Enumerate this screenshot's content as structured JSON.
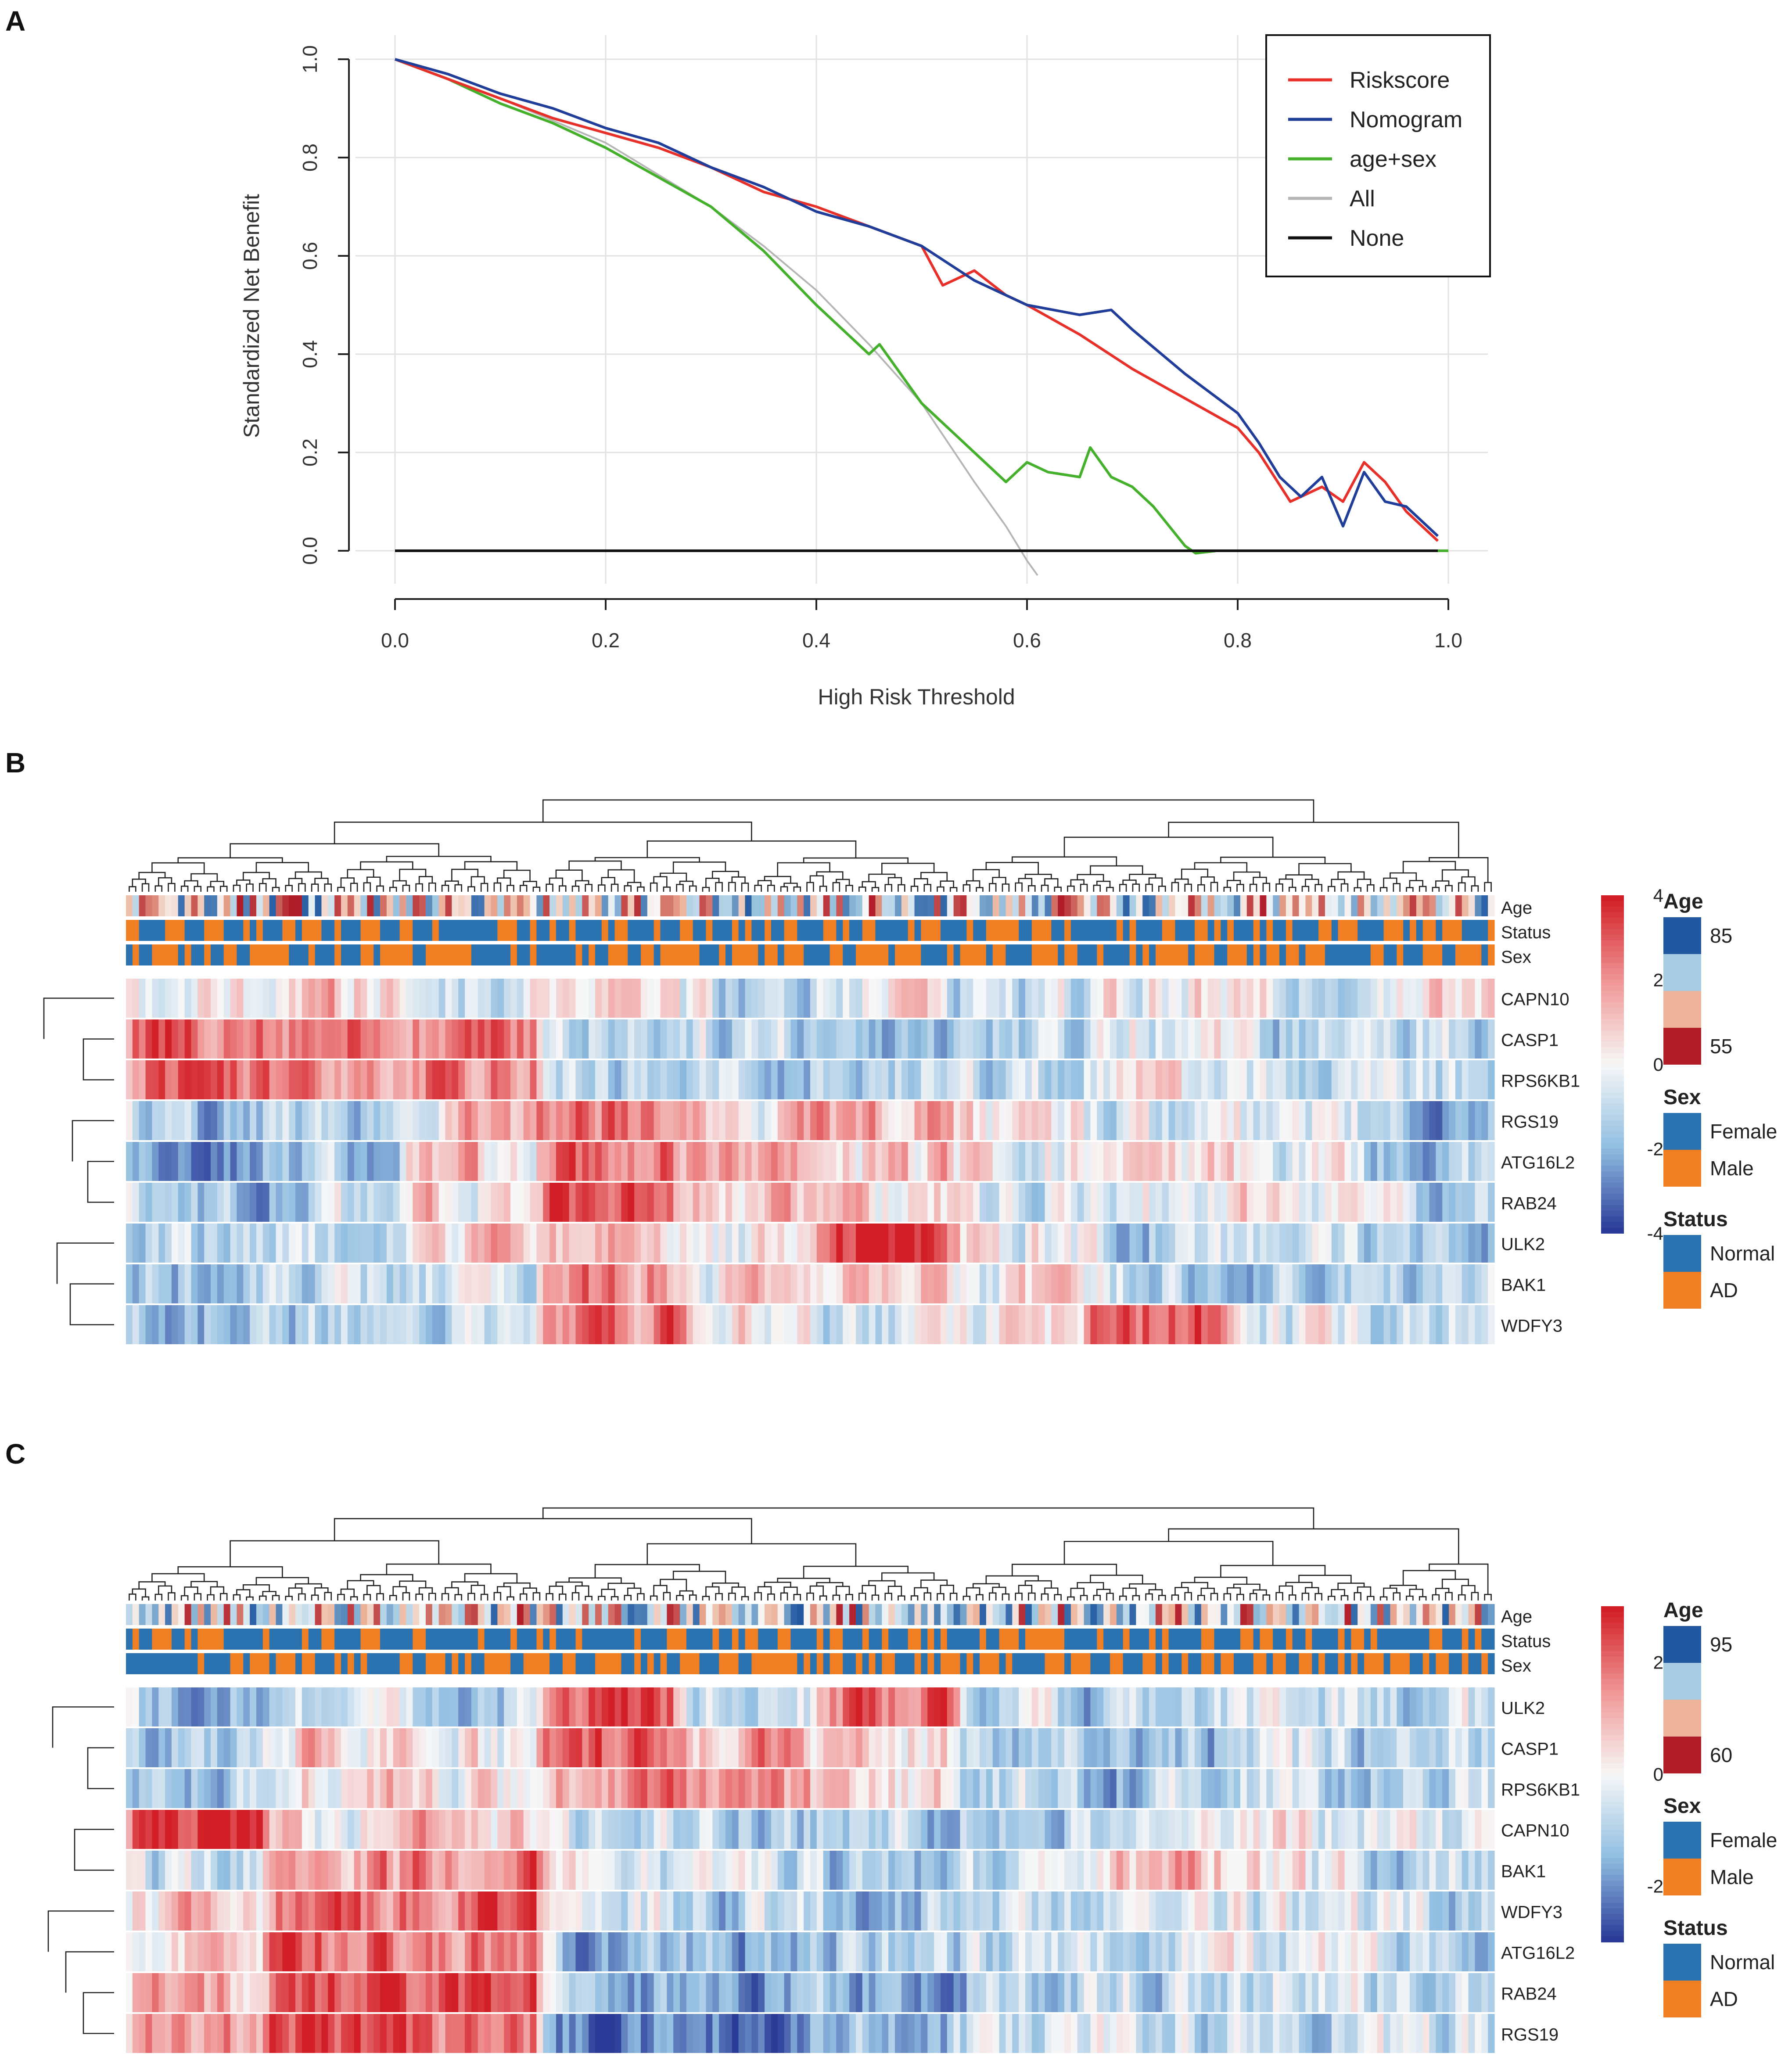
{
  "chart_data": [
    {
      "panel": "A",
      "type": "line",
      "title": "",
      "xlabel": "High Risk Threshold",
      "ylabel": "Standardized Net Benefit",
      "xlim": [
        0,
        1
      ],
      "ylim": [
        -0.05,
        1.05
      ],
      "x_ticks": [
        "0.0",
        "0.2",
        "0.4",
        "0.6",
        "0.8",
        "1.0"
      ],
      "y_ticks": [
        "0.0",
        "0.2",
        "0.4",
        "0.6",
        "0.8",
        "1.0"
      ],
      "grid": true,
      "legend_position": "top-right",
      "series": [
        {
          "name": "Riskscore",
          "color": "#e8302a",
          "x": [
            0,
            0.05,
            0.1,
            0.15,
            0.2,
            0.25,
            0.3,
            0.35,
            0.4,
            0.45,
            0.5,
            0.52,
            0.55,
            0.58,
            0.6,
            0.65,
            0.7,
            0.75,
            0.8,
            0.82,
            0.85,
            0.88,
            0.9,
            0.92,
            0.94,
            0.96,
            0.99
          ],
          "y": [
            1.0,
            0.96,
            0.92,
            0.88,
            0.85,
            0.82,
            0.78,
            0.73,
            0.7,
            0.66,
            0.62,
            0.54,
            0.57,
            0.52,
            0.5,
            0.44,
            0.37,
            0.31,
            0.25,
            0.2,
            0.1,
            0.13,
            0.1,
            0.18,
            0.14,
            0.08,
            0.02
          ]
        },
        {
          "name": "Nomogram",
          "color": "#1f3d99",
          "x": [
            0,
            0.05,
            0.1,
            0.15,
            0.2,
            0.25,
            0.3,
            0.35,
            0.4,
            0.45,
            0.5,
            0.55,
            0.6,
            0.65,
            0.68,
            0.7,
            0.75,
            0.8,
            0.82,
            0.84,
            0.86,
            0.88,
            0.9,
            0.92,
            0.94,
            0.96,
            0.99
          ],
          "y": [
            1.0,
            0.97,
            0.93,
            0.9,
            0.86,
            0.83,
            0.78,
            0.74,
            0.69,
            0.66,
            0.62,
            0.55,
            0.5,
            0.48,
            0.49,
            0.45,
            0.36,
            0.28,
            0.22,
            0.15,
            0.11,
            0.15,
            0.05,
            0.16,
            0.1,
            0.09,
            0.03
          ]
        },
        {
          "name": "age+sex",
          "color": "#44b02c",
          "x": [
            0,
            0.05,
            0.1,
            0.15,
            0.2,
            0.25,
            0.3,
            0.35,
            0.4,
            0.45,
            0.46,
            0.5,
            0.55,
            0.58,
            0.6,
            0.62,
            0.65,
            0.66,
            0.68,
            0.7,
            0.72,
            0.75,
            0.76,
            0.78,
            0.8,
            1.0
          ],
          "y": [
            1.0,
            0.96,
            0.91,
            0.87,
            0.82,
            0.76,
            0.7,
            0.61,
            0.5,
            0.4,
            0.42,
            0.3,
            0.2,
            0.14,
            0.18,
            0.16,
            0.15,
            0.21,
            0.15,
            0.13,
            0.09,
            0.01,
            -0.005,
            0.0,
            0.0,
            0.0
          ]
        },
        {
          "name": "All",
          "color": "#b5b5b5",
          "x": [
            0,
            0.1,
            0.2,
            0.3,
            0.35,
            0.4,
            0.45,
            0.5,
            0.55,
            0.58,
            0.6,
            0.61
          ],
          "y": [
            1.0,
            0.92,
            0.83,
            0.7,
            0.62,
            0.53,
            0.42,
            0.3,
            0.14,
            0.05,
            -0.02,
            -0.05
          ]
        },
        {
          "name": "None",
          "color": "#111111",
          "x": [
            0,
            0.99
          ],
          "y": [
            0,
            0
          ]
        }
      ]
    },
    {
      "panel": "B",
      "type": "heatmap",
      "rows": [
        "CAPN10",
        "CASP1",
        "RPS6KB1",
        "RGS19",
        "ATG16L2",
        "RAB24",
        "ULK2",
        "BAK1",
        "WDFY3"
      ],
      "annotation_rows": [
        "Age",
        "Status",
        "Sex"
      ],
      "color_scale": {
        "min": -4,
        "max": 4,
        "ticks": [
          "4",
          "2",
          "0",
          "-2",
          "-4"
        ]
      },
      "legend": {
        "age_title": "Age",
        "age_labels": [
          "85",
          "55"
        ],
        "sex_title": "Sex",
        "sex_labels": [
          "Female",
          "Male"
        ],
        "status_title": "Status",
        "status_labels": [
          "Normal",
          "AD"
        ]
      }
    },
    {
      "panel": "C",
      "type": "heatmap",
      "rows": [
        "ULK2",
        "CASP1",
        "RPS6KB1",
        "CAPN10",
        "BAK1",
        "WDFY3",
        "ATG16L2",
        "RAB24",
        "RGS19"
      ],
      "annotation_rows": [
        "Age",
        "Status",
        "Sex"
      ],
      "color_scale": {
        "min": -3,
        "max": 3,
        "ticks": [
          "2",
          "0",
          "-2"
        ]
      },
      "legend": {
        "age_title": "Age",
        "age_labels": [
          "95",
          "60"
        ],
        "sex_title": "Sex",
        "sex_labels": [
          "Female",
          "Male"
        ],
        "status_title": "Status",
        "status_labels": [
          "Normal",
          "AD"
        ]
      }
    }
  ],
  "panels": {
    "a": "A",
    "b": "B",
    "c": "C"
  },
  "colors": {
    "blue": "#2a72b0",
    "orange": "#ef7f22",
    "hot": "#d7262b",
    "cold": "#2a3b98"
  }
}
